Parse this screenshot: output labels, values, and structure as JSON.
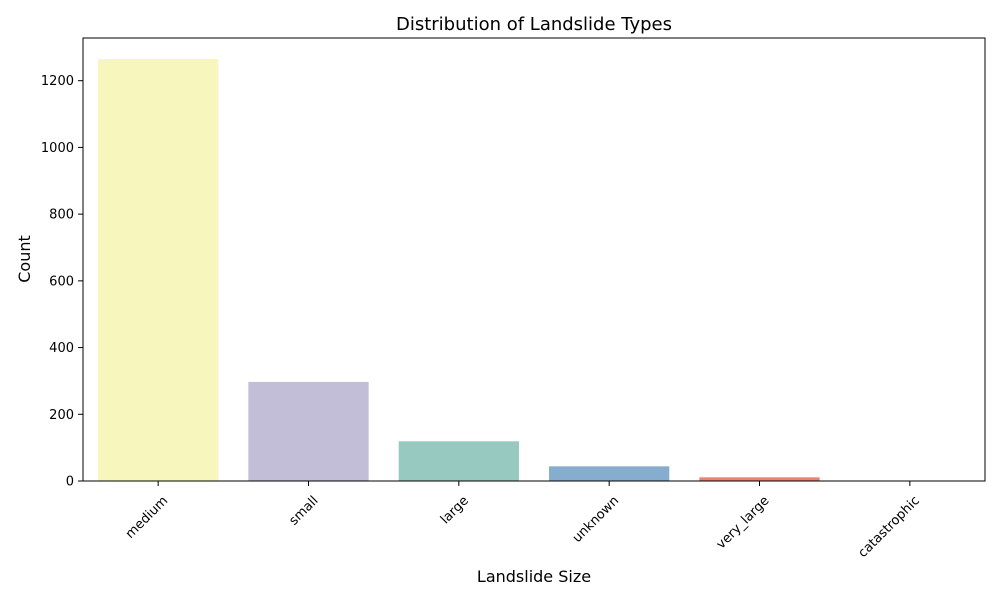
{
  "chart_data": {
    "type": "bar",
    "title": "Distribution of Landslide Types",
    "xlabel": "Landslide Size",
    "ylabel": "Count",
    "categories": [
      "medium",
      "small",
      "large",
      "unknown",
      "very_large",
      "catastrophic"
    ],
    "values": [
      1265,
      297,
      119,
      44,
      11,
      1
    ],
    "colors": [
      "#f7f7bd",
      "#c2bed7",
      "#97c9c1",
      "#86adce",
      "#e78571",
      "#ffffff"
    ],
    "ylim": [
      0,
      1328
    ],
    "yticks": [
      0,
      200,
      400,
      600,
      800,
      1000,
      1200
    ],
    "xtick_rotation": 45,
    "grid": false,
    "legend": "none"
  }
}
